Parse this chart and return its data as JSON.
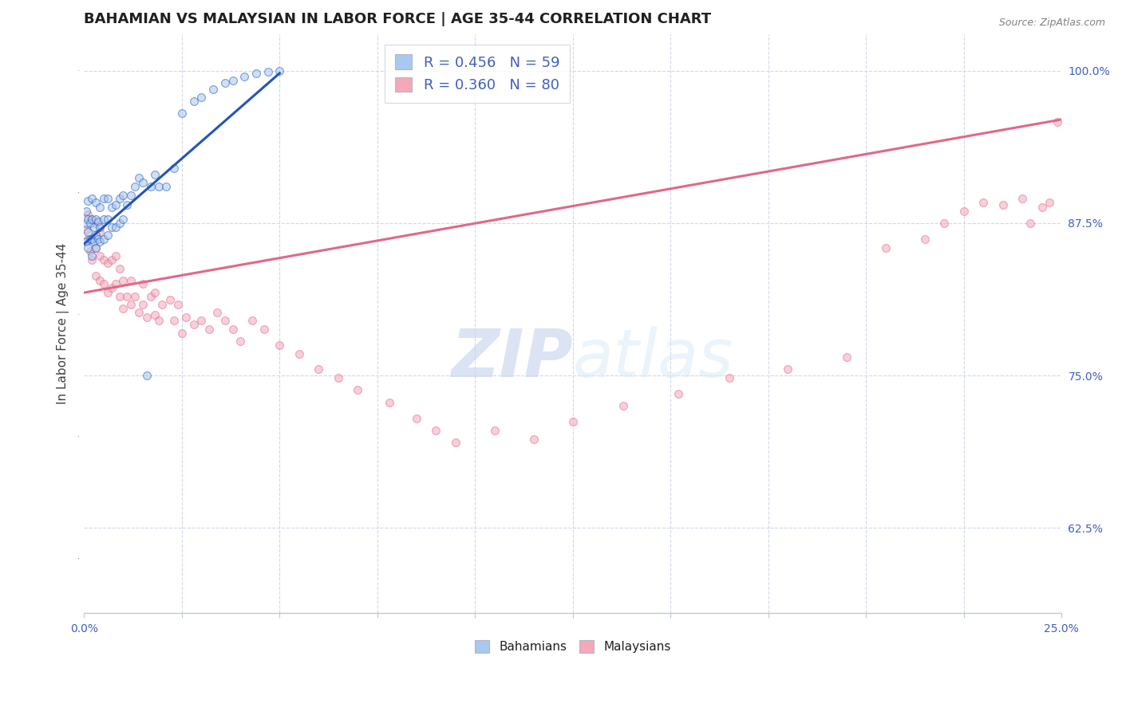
{
  "title": "BAHAMIAN VS MALAYSIAN IN LABOR FORCE | AGE 35-44 CORRELATION CHART",
  "source": "Source: ZipAtlas.com",
  "ylabel": "In Labor Force | Age 35-44",
  "xmin": 0.0,
  "xmax": 0.25,
  "ymin": 0.555,
  "ymax": 1.03,
  "yticks": [
    0.625,
    0.75,
    0.875,
    1.0
  ],
  "ytick_labels": [
    "62.5%",
    "75.0%",
    "87.5%",
    "100.0%"
  ],
  "xticks": [
    0.0,
    0.025,
    0.05,
    0.075,
    0.1,
    0.125,
    0.15,
    0.175,
    0.2,
    0.225,
    0.25
  ],
  "xtick_labels": [
    "0.0%",
    "",
    "",
    "",
    "",
    "",
    "",
    "",
    "",
    "",
    "25.0%"
  ],
  "bahamian_color": "#a8c8f0",
  "malaysian_color": "#f5a8b8",
  "blue_line_color": "#2255bb",
  "pink_line_color": "#e06888",
  "R_bahamian": 0.456,
  "N_bahamian": 59,
  "R_malaysian": 0.36,
  "N_malaysian": 80,
  "bahamian_x": [
    0.0005,
    0.0005,
    0.0005,
    0.001,
    0.001,
    0.001,
    0.001,
    0.0015,
    0.0015,
    0.002,
    0.002,
    0.002,
    0.002,
    0.0025,
    0.0025,
    0.003,
    0.003,
    0.003,
    0.003,
    0.0035,
    0.0035,
    0.004,
    0.004,
    0.004,
    0.005,
    0.005,
    0.005,
    0.006,
    0.006,
    0.006,
    0.007,
    0.007,
    0.008,
    0.008,
    0.009,
    0.009,
    0.01,
    0.01,
    0.011,
    0.012,
    0.013,
    0.014,
    0.015,
    0.016,
    0.017,
    0.018,
    0.019,
    0.021,
    0.023,
    0.025,
    0.028,
    0.03,
    0.033,
    0.036,
    0.038,
    0.041,
    0.044,
    0.047,
    0.05
  ],
  "bahamian_y": [
    0.86,
    0.875,
    0.885,
    0.855,
    0.868,
    0.878,
    0.893,
    0.862,
    0.875,
    0.848,
    0.862,
    0.878,
    0.895,
    0.86,
    0.872,
    0.855,
    0.865,
    0.878,
    0.892,
    0.862,
    0.876,
    0.86,
    0.872,
    0.888,
    0.862,
    0.878,
    0.895,
    0.865,
    0.878,
    0.895,
    0.872,
    0.888,
    0.872,
    0.89,
    0.875,
    0.895,
    0.878,
    0.898,
    0.89,
    0.898,
    0.905,
    0.912,
    0.908,
    0.75,
    0.905,
    0.915,
    0.905,
    0.905,
    0.92,
    0.965,
    0.975,
    0.978,
    0.985,
    0.99,
    0.992,
    0.995,
    0.998,
    0.999,
    1.0
  ],
  "malaysian_x": [
    0.0005,
    0.001,
    0.001,
    0.0015,
    0.002,
    0.002,
    0.002,
    0.003,
    0.003,
    0.003,
    0.004,
    0.004,
    0.004,
    0.005,
    0.005,
    0.006,
    0.006,
    0.007,
    0.007,
    0.008,
    0.008,
    0.009,
    0.009,
    0.01,
    0.01,
    0.011,
    0.012,
    0.012,
    0.013,
    0.014,
    0.015,
    0.015,
    0.016,
    0.017,
    0.018,
    0.018,
    0.019,
    0.02,
    0.022,
    0.023,
    0.024,
    0.025,
    0.026,
    0.028,
    0.03,
    0.032,
    0.034,
    0.036,
    0.038,
    0.04,
    0.043,
    0.046,
    0.05,
    0.055,
    0.06,
    0.065,
    0.07,
    0.078,
    0.085,
    0.09,
    0.095,
    0.105,
    0.115,
    0.125,
    0.138,
    0.152,
    0.165,
    0.18,
    0.195,
    0.205,
    0.215,
    0.22,
    0.225,
    0.23,
    0.235,
    0.24,
    0.242,
    0.245,
    0.247,
    0.249
  ],
  "malaysian_y": [
    0.87,
    0.862,
    0.882,
    0.852,
    0.845,
    0.862,
    0.878,
    0.832,
    0.855,
    0.875,
    0.828,
    0.848,
    0.868,
    0.825,
    0.845,
    0.818,
    0.842,
    0.822,
    0.845,
    0.825,
    0.848,
    0.815,
    0.838,
    0.805,
    0.828,
    0.815,
    0.808,
    0.828,
    0.815,
    0.802,
    0.808,
    0.825,
    0.798,
    0.815,
    0.8,
    0.818,
    0.795,
    0.808,
    0.812,
    0.795,
    0.808,
    0.785,
    0.798,
    0.792,
    0.795,
    0.788,
    0.802,
    0.795,
    0.788,
    0.778,
    0.795,
    0.788,
    0.775,
    0.768,
    0.755,
    0.748,
    0.738,
    0.728,
    0.715,
    0.705,
    0.695,
    0.705,
    0.698,
    0.712,
    0.725,
    0.735,
    0.748,
    0.755,
    0.765,
    0.855,
    0.862,
    0.875,
    0.885,
    0.892,
    0.89,
    0.895,
    0.875,
    0.888,
    0.892,
    0.958
  ],
  "blue_trend_x0": 0.0,
  "blue_trend_y0": 0.858,
  "blue_trend_x1": 0.05,
  "blue_trend_y1": 0.998,
  "pink_trend_x0": 0.0,
  "pink_trend_y0": 0.818,
  "pink_trend_x1": 0.25,
  "pink_trend_y1": 0.96,
  "background_color": "#ffffff",
  "grid_color": "#d0d8e8",
  "watermark_color": "#ccd8f0",
  "title_fontsize": 13,
  "axis_label_fontsize": 11,
  "tick_fontsize": 10,
  "legend_fontsize": 13,
  "scatter_size": 50,
  "scatter_alpha": 0.55,
  "line_width": 2.2
}
